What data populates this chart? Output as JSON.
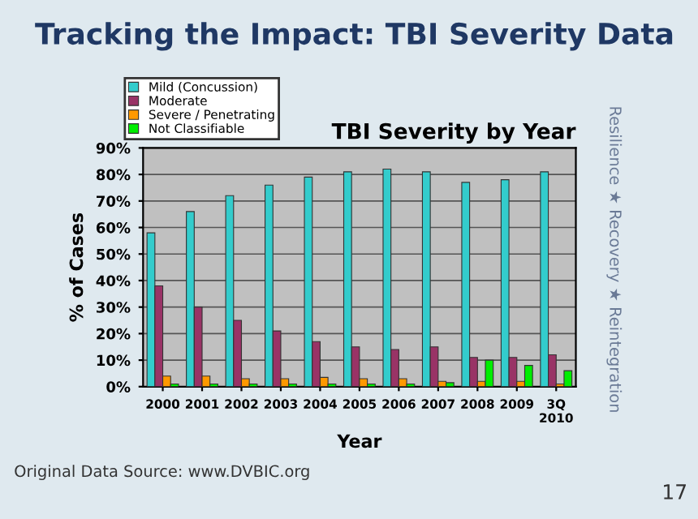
{
  "chart_data": {
    "type": "bar",
    "title": "Tracking the Impact: TBI Severity Data",
    "subtitle": "TBI Severity by Year",
    "xlabel": "Year",
    "ylabel": "% of Cases",
    "categories": [
      "2000",
      "2001",
      "2002",
      "2003",
      "2004",
      "2005",
      "2006",
      "2007",
      "2008",
      "2009",
      "3Q\n2010"
    ],
    "series": [
      {
        "name": "Mild (Concussion)",
        "color": "#33cccc",
        "values": [
          58,
          66,
          72,
          76,
          79,
          81,
          82,
          81,
          77,
          78,
          81
        ]
      },
      {
        "name": "Moderate",
        "color": "#993366",
        "values": [
          38,
          30,
          25,
          21,
          17,
          15,
          14,
          15,
          11,
          11,
          12
        ]
      },
      {
        "name": "Severe / Penetrating",
        "color": "#ff9900",
        "values": [
          4,
          4,
          3,
          3,
          3.5,
          3,
          3,
          2,
          2,
          2,
          1
        ]
      },
      {
        "name": "Not Classifiable",
        "color": "#00ee00",
        "values": [
          1,
          1,
          1,
          1,
          1,
          1,
          1,
          1.5,
          10,
          8,
          6
        ]
      }
    ],
    "ylim": [
      0,
      90
    ],
    "yticks": [
      {
        "value": 0,
        "label": "0%"
      },
      {
        "value": 10,
        "label": "10%"
      },
      {
        "value": 20,
        "label": "20%"
      },
      {
        "value": 30,
        "label": "30%"
      },
      {
        "value": 40,
        "label": "40%"
      },
      {
        "value": 50,
        "label": "50%"
      },
      {
        "value": 60,
        "label": "60%"
      },
      {
        "value": 70,
        "label": "70%"
      },
      {
        "value": 80,
        "label": "80%"
      },
      {
        "value": 90,
        "label": "90%"
      }
    ],
    "grid": "y",
    "legend": "top left",
    "annotations": [
      "Original Data Source: www.DVBIC.org",
      "Resilience ★ Recovery ★ Reintegration",
      "17"
    ]
  }
}
